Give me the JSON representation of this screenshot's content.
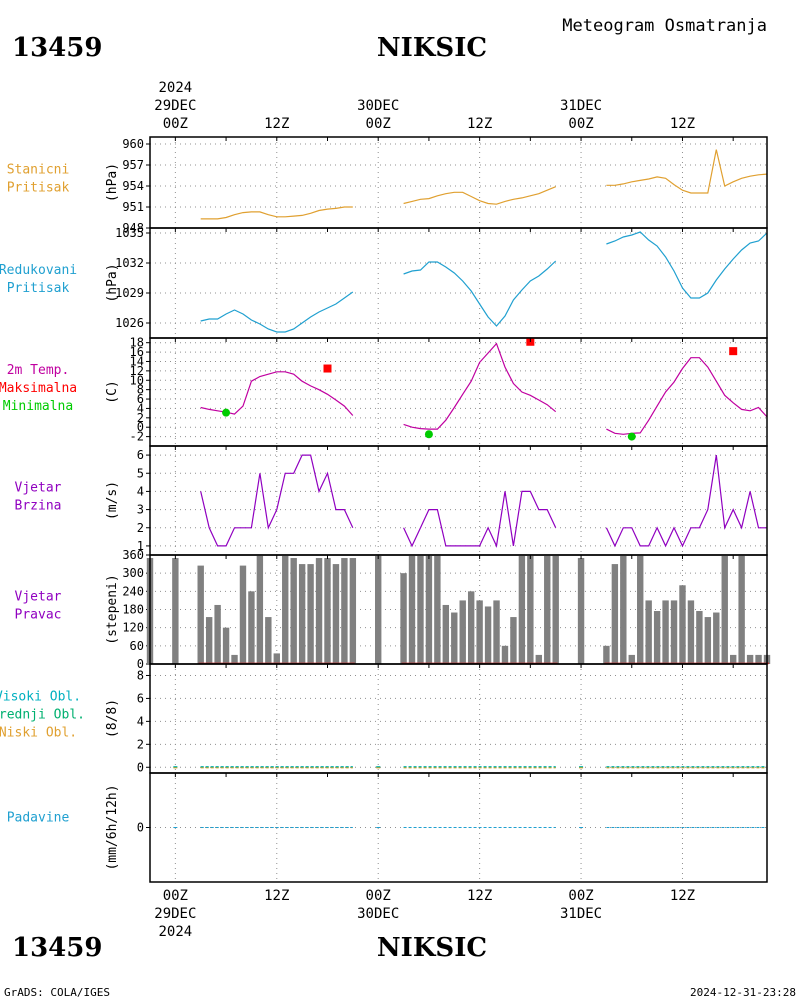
{
  "header": {
    "station_id": "13459",
    "station_name": "NIKSIC",
    "product_title": "Meteogram Osmatranja"
  },
  "footer": {
    "credit": "GrADS: COLA/IGES",
    "timestamp": "2024-12-31-23:28"
  },
  "time_axis": {
    "year": "2024",
    "tick_labels": [
      "00Z",
      "12Z",
      "00Z",
      "12Z",
      "00Z",
      "12Z"
    ],
    "day_labels": [
      "29DEC",
      "30DEC",
      "31DEC"
    ],
    "x_range_hours": [
      -3,
      70
    ]
  },
  "colors": {
    "pressure_station": "#e0a030",
    "pressure_reduced": "#20a0d0",
    "temperature": "#c000a0",
    "tmax": "#ff0000",
    "tmin": "#00cc00",
    "wind_speed": "#9000c0",
    "wind_dir_bars": "#808080",
    "wind_dir_baseline": "#c03030",
    "clouds_high": "#00b0c0",
    "clouds_mid": "#00b070",
    "clouds_low": "#e0a030",
    "precip": "#20a0d0"
  },
  "chart_data": [
    {
      "type": "line",
      "panel": "station_pressure",
      "label_lines": [
        "Stanicni",
        "Pritisak"
      ],
      "unit": "(hPa)",
      "ylim": [
        948,
        961
      ],
      "yticks": [
        948,
        951,
        954,
        957,
        960
      ],
      "segments": [
        {
          "x": [
            3,
            4,
            5,
            6,
            7,
            8,
            9,
            10,
            11,
            12,
            13,
            14,
            15,
            16,
            17,
            18,
            19,
            20,
            21
          ],
          "y": [
            949.3,
            949.3,
            949.3,
            949.5,
            949.9,
            950.2,
            950.3,
            950.3,
            949.9,
            949.6,
            949.6,
            949.7,
            949.8,
            950.1,
            950.5,
            950.7,
            950.8,
            951.0,
            951.0
          ]
        },
        {
          "x": [
            27,
            28,
            29,
            30,
            31,
            32,
            33,
            34,
            35,
            36,
            37,
            38,
            39,
            40,
            41,
            42,
            43,
            44,
            45
          ],
          "y": [
            951.5,
            951.8,
            952.1,
            952.2,
            952.6,
            952.9,
            953.1,
            953.1,
            952.5,
            951.9,
            951.5,
            951.4,
            951.8,
            952.1,
            952.3,
            952.6,
            952.9,
            953.4,
            953.9
          ]
        },
        {
          "x": [
            51,
            52,
            53,
            54,
            55,
            56,
            57,
            58,
            59,
            60,
            61,
            62,
            63,
            64,
            65,
            66,
            67,
            68,
            69,
            70
          ],
          "y": [
            954.1,
            954.1,
            954.3,
            954.6,
            954.8,
            955.0,
            955.3,
            955.1,
            954.2,
            953.4,
            953.0,
            953.0,
            953.0,
            959.2,
            954.0,
            954.6,
            955.1,
            955.4,
            955.6,
            955.7
          ]
        }
      ]
    },
    {
      "type": "line",
      "panel": "reduced_pressure",
      "label_lines": [
        "Redukovani",
        "Pritisak"
      ],
      "unit": "(hPa)",
      "ylim": [
        1024.5,
        1035.5
      ],
      "yticks": [
        1026,
        1029,
        1032,
        1035
      ],
      "segments": [
        {
          "x": [
            3,
            4,
            5,
            6,
            7,
            8,
            9,
            10,
            11,
            12,
            13,
            14,
            15,
            16,
            17,
            18,
            19,
            20,
            21
          ],
          "y": [
            1026.2,
            1026.4,
            1026.4,
            1026.9,
            1027.3,
            1026.9,
            1026.3,
            1025.9,
            1025.4,
            1025.1,
            1025.1,
            1025.4,
            1026.0,
            1026.6,
            1027.1,
            1027.5,
            1027.9,
            1028.5,
            1029.1
          ]
        },
        {
          "x": [
            27,
            28,
            29,
            30,
            31,
            32,
            33,
            34,
            35,
            36,
            37,
            38,
            39,
            40,
            41,
            42,
            43,
            44,
            45
          ],
          "y": [
            1030.9,
            1031.2,
            1031.3,
            1032.1,
            1032.1,
            1031.6,
            1031.0,
            1030.2,
            1029.2,
            1027.9,
            1026.6,
            1025.7,
            1026.7,
            1028.3,
            1029.3,
            1030.2,
            1030.7,
            1031.4,
            1032.2
          ]
        },
        {
          "x": [
            51,
            52,
            53,
            54,
            55,
            56,
            57,
            58,
            59,
            60,
            61,
            62,
            63,
            64,
            65,
            66,
            67,
            68,
            69,
            70
          ],
          "y": [
            1033.9,
            1034.2,
            1034.6,
            1034.8,
            1035.1,
            1034.3,
            1033.7,
            1032.6,
            1031.2,
            1029.5,
            1028.5,
            1028.5,
            1029.0,
            1030.3,
            1031.4,
            1032.4,
            1033.3,
            1034.0,
            1034.2,
            1035.0
          ]
        }
      ]
    },
    {
      "type": "line",
      "panel": "temperature",
      "label_lines": [
        "2m Temp.",
        "Maksimalna",
        "Minimalna"
      ],
      "unit": "(C)",
      "ylim": [
        -4,
        19
      ],
      "yticks": [
        -2,
        0,
        2,
        4,
        6,
        8,
        10,
        12,
        14,
        16,
        18
      ],
      "segments": [
        {
          "x": [
            3,
            4,
            5,
            6,
            7,
            8,
            9,
            10,
            11,
            12,
            13,
            14,
            15,
            16,
            17,
            18,
            19,
            20,
            21
          ],
          "y": [
            4.2,
            3.8,
            3.5,
            3.2,
            2.8,
            4.5,
            9.8,
            10.8,
            11.3,
            11.8,
            11.8,
            11.3,
            9.8,
            8.8,
            8.0,
            7.0,
            5.8,
            4.5,
            2.5
          ]
        },
        {
          "x": [
            27,
            28,
            29,
            30,
            31,
            32,
            33,
            34,
            35,
            36,
            37,
            38,
            39,
            40,
            41,
            42,
            43,
            44,
            45
          ],
          "y": [
            0.6,
            0.0,
            -0.3,
            -0.4,
            -0.4,
            1.5,
            4.2,
            7.0,
            9.8,
            13.8,
            15.8,
            17.8,
            12.8,
            9.3,
            7.5,
            6.8,
            5.8,
            4.8,
            3.3
          ]
        },
        {
          "x": [
            51,
            52,
            53,
            54,
            55,
            56,
            57,
            58,
            59,
            60,
            61,
            62,
            63,
            64,
            65,
            66,
            67,
            68,
            69,
            70
          ],
          "y": [
            -0.4,
            -1.3,
            -1.5,
            -1.3,
            -1.2,
            1.5,
            4.5,
            7.5,
            9.6,
            12.5,
            14.8,
            14.8,
            12.8,
            9.8,
            6.8,
            5.2,
            3.8,
            3.5,
            4.2,
            2.2
          ]
        }
      ],
      "tmax_points": [
        {
          "x": 18,
          "y": 12.5
        },
        {
          "x": 42,
          "y": 18.2
        },
        {
          "x": 66,
          "y": 16.2
        }
      ],
      "tmin_points": [
        {
          "x": 6,
          "y": 3.1
        },
        {
          "x": 30,
          "y": -1.5
        },
        {
          "x": 54,
          "y": -2.0
        }
      ]
    },
    {
      "type": "line",
      "panel": "wind_speed",
      "label_lines": [
        "Vjetar",
        "Brzina"
      ],
      "unit": "(m/s)",
      "ylim": [
        0.5,
        6.5
      ],
      "yticks": [
        1,
        2,
        3,
        4,
        5,
        6
      ],
      "segments": [
        {
          "x": [
            3,
            4,
            5,
            6,
            7,
            8,
            9,
            10,
            11,
            12,
            13,
            14,
            15,
            16,
            17,
            18,
            19,
            20,
            21
          ],
          "y": [
            4,
            2,
            1,
            1,
            2,
            2,
            2,
            5,
            2,
            3,
            5,
            5,
            6,
            6,
            4,
            5,
            3,
            3,
            2
          ]
        },
        {
          "x": [
            27,
            28,
            29,
            30,
            31,
            32,
            33,
            34,
            35,
            36,
            37,
            38,
            39,
            40,
            41,
            42,
            43,
            44,
            45
          ],
          "y": [
            2,
            1,
            2,
            3,
            3,
            1,
            1,
            1,
            1,
            1,
            2,
            1,
            4,
            1,
            4,
            4,
            3,
            3,
            2
          ]
        },
        {
          "x": [
            51,
            52,
            53,
            54,
            55,
            56,
            57,
            58,
            59,
            60,
            61,
            62,
            63,
            64,
            65,
            66,
            67,
            68,
            69,
            70
          ],
          "y": [
            2,
            1,
            2,
            2,
            1,
            1,
            2,
            1,
            2,
            1,
            2,
            2,
            3,
            6,
            2,
            3,
            2,
            4,
            2,
            2
          ]
        }
      ]
    },
    {
      "type": "bar",
      "panel": "wind_direction",
      "label_lines": [
        "Vjetar",
        "Pravac"
      ],
      "unit": "(stepeni)",
      "ylim": [
        0,
        360
      ],
      "yticks": [
        0,
        60,
        120,
        180,
        240,
        300,
        360
      ],
      "x": [
        -3,
        0,
        3,
        4,
        5,
        6,
        7,
        8,
        9,
        10,
        11,
        12,
        13,
        14,
        15,
        16,
        17,
        18,
        19,
        20,
        21,
        24,
        27,
        28,
        29,
        30,
        31,
        32,
        33,
        34,
        35,
        36,
        37,
        38,
        39,
        40,
        41,
        42,
        43,
        44,
        45,
        48,
        51,
        52,
        53,
        54,
        55,
        56,
        57,
        58,
        59,
        60,
        61,
        62,
        63,
        64,
        65,
        66,
        67,
        68,
        69,
        70
      ],
      "values": [
        350,
        350,
        325,
        155,
        195,
        120,
        30,
        325,
        240,
        360,
        155,
        35,
        360,
        350,
        330,
        330,
        350,
        350,
        330,
        350,
        350,
        360,
        300,
        360,
        360,
        360,
        360,
        195,
        170,
        210,
        240,
        210,
        190,
        210,
        60,
        155,
        360,
        360,
        30,
        360,
        360,
        350,
        60,
        330,
        360,
        30,
        360,
        210,
        175,
        210,
        210,
        260,
        210,
        175,
        155,
        170,
        360,
        30,
        360,
        30,
        30,
        30
      ]
    },
    {
      "type": "line",
      "panel": "clouds",
      "label_lines": [
        "Visoki Obl.",
        "Srednji Obl.",
        "Niski Obl."
      ],
      "unit": "(8/8)",
      "ylim": [
        -0.5,
        9
      ],
      "yticks": [
        0,
        2,
        4,
        6,
        8
      ],
      "series": [
        {
          "name": "Visoki Obl.",
          "values": [
            0
          ]
        },
        {
          "name": "Srednji Obl.",
          "values": [
            0
          ]
        },
        {
          "name": "Niski Obl.",
          "values": [
            0
          ]
        }
      ]
    },
    {
      "type": "line",
      "panel": "precipitation",
      "label_lines": [
        "Padavine"
      ],
      "unit": "(mm/6h/12h)",
      "ylim": [
        -1,
        1
      ],
      "yticks": [
        0
      ],
      "series": [
        {
          "name": "Padavine",
          "values": [
            0
          ]
        }
      ]
    }
  ]
}
